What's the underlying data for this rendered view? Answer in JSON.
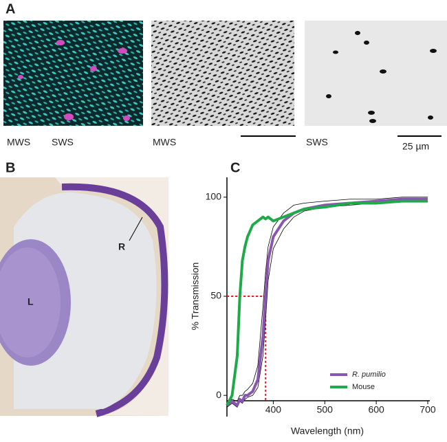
{
  "panels": {
    "a": {
      "label": "A",
      "captions": [
        "MWS",
        "SWS",
        "MWS",
        "SWS"
      ],
      "scale": "25 µm"
    },
    "b": {
      "label": "B",
      "lens": "L",
      "retina": "R"
    },
    "c": {
      "label": "C"
    }
  },
  "chart_data": {
    "type": "line",
    "xlabel": "Wavelength (nm)",
    "ylabel": "% Transmission",
    "x": [
      310,
      320,
      330,
      335,
      340,
      345,
      350,
      360,
      370,
      380,
      385,
      390,
      400,
      420,
      440,
      460,
      500,
      550,
      600,
      650,
      700
    ],
    "series": [
      {
        "color": "#000000",
        "width": 0.8,
        "values": [
          -4,
          -2,
          -3,
          0,
          0,
          2,
          3,
          6,
          15,
          45,
          62,
          75,
          85,
          92,
          96,
          97,
          98,
          99,
          99,
          100,
          100
        ]
      },
      {
        "color": "#000000",
        "width": 0.8,
        "values": [
          -6,
          -4,
          -6,
          -3,
          -4,
          -2,
          -1,
          0,
          4,
          20,
          38,
          58,
          74,
          84,
          90,
          93,
          95,
          96,
          97,
          98,
          99
        ]
      },
      {
        "name": "R. pumilio",
        "color": "#8a55b0",
        "width": 4,
        "values": [
          -5,
          -3,
          -5,
          -2,
          -3,
          0,
          0,
          2,
          8,
          30,
          50,
          68,
          80,
          88,
          92,
          94,
          96,
          97,
          98,
          99,
          99
        ]
      },
      {
        "name": "Mouse",
        "color": "#1faa4a",
        "width": 4,
        "values": [
          -5,
          0,
          20,
          50,
          68,
          75,
          80,
          86,
          88,
          90,
          89,
          90,
          88,
          90,
          92,
          94,
          95,
          97,
          97,
          98,
          98
        ]
      }
    ],
    "reference": {
      "x": 385,
      "y": 50,
      "color": "#e02020"
    },
    "xlim": [
      310,
      700
    ],
    "ylim": [
      -10,
      110
    ],
    "xticks": [
      400,
      500,
      600,
      700
    ],
    "yticks": [
      0,
      50,
      100
    ],
    "legend": "lower right"
  }
}
